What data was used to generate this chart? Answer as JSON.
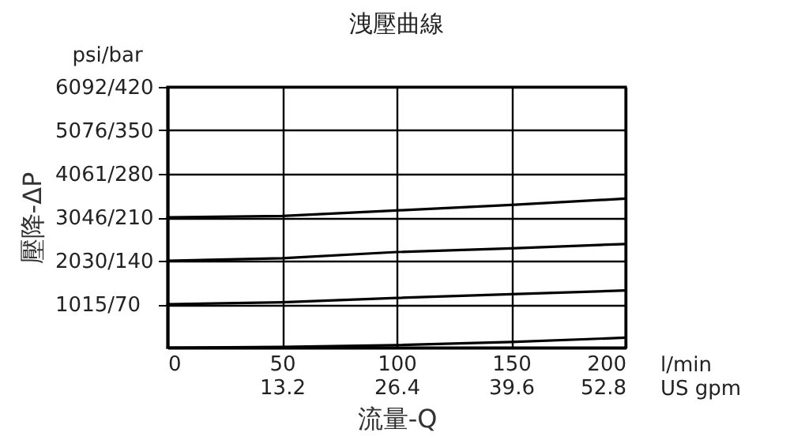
{
  "chart_data": {
    "type": "line",
    "title": "洩壓曲線",
    "xlabel": "流量-Q",
    "y2label": "壓降-ΔP",
    "annotations": [
      "psi/bar",
      "l/min",
      "US gpm"
    ],
    "x": [
      0,
      50,
      100,
      150,
      200
    ],
    "series": [
      {
        "color": "#000000",
        "values": [
          210,
          212,
          221,
          230,
          240
        ]
      },
      {
        "color": "#000000",
        "values": [
          140,
          144,
          154,
          160,
          167
        ]
      },
      {
        "color": "#000000",
        "values": [
          70,
          73,
          80,
          86,
          92
        ]
      },
      {
        "color": "#000000",
        "values": [
          0,
          1,
          4,
          9,
          16
        ]
      }
    ],
    "xlim": [
      0,
      200
    ],
    "xticks": [
      0,
      50,
      100,
      150,
      200
    ],
    "x2lim": [
      0,
      52.8
    ],
    "x2ticks": [
      13.2,
      26.4,
      39.6,
      52.8
    ],
    "ylim": [
      0,
      420
    ],
    "yticks": [
      70,
      140,
      210,
      280,
      350,
      420
    ],
    "y2lim": [
      0,
      6092
    ],
    "y2ticks": [
      {
        "value": 1015,
        "label": "1015/"
      },
      {
        "value": 2030,
        "label": "2030/"
      },
      {
        "value": 3046,
        "label": "3046/"
      },
      {
        "value": 4061,
        "label": "4061/"
      },
      {
        "value": 5076,
        "label": "5076/"
      },
      {
        "value": 6092,
        "label": "6092/"
      }
    ],
    "grid": true,
    "line_style": "solid",
    "marker": "none",
    "legend": false
  }
}
